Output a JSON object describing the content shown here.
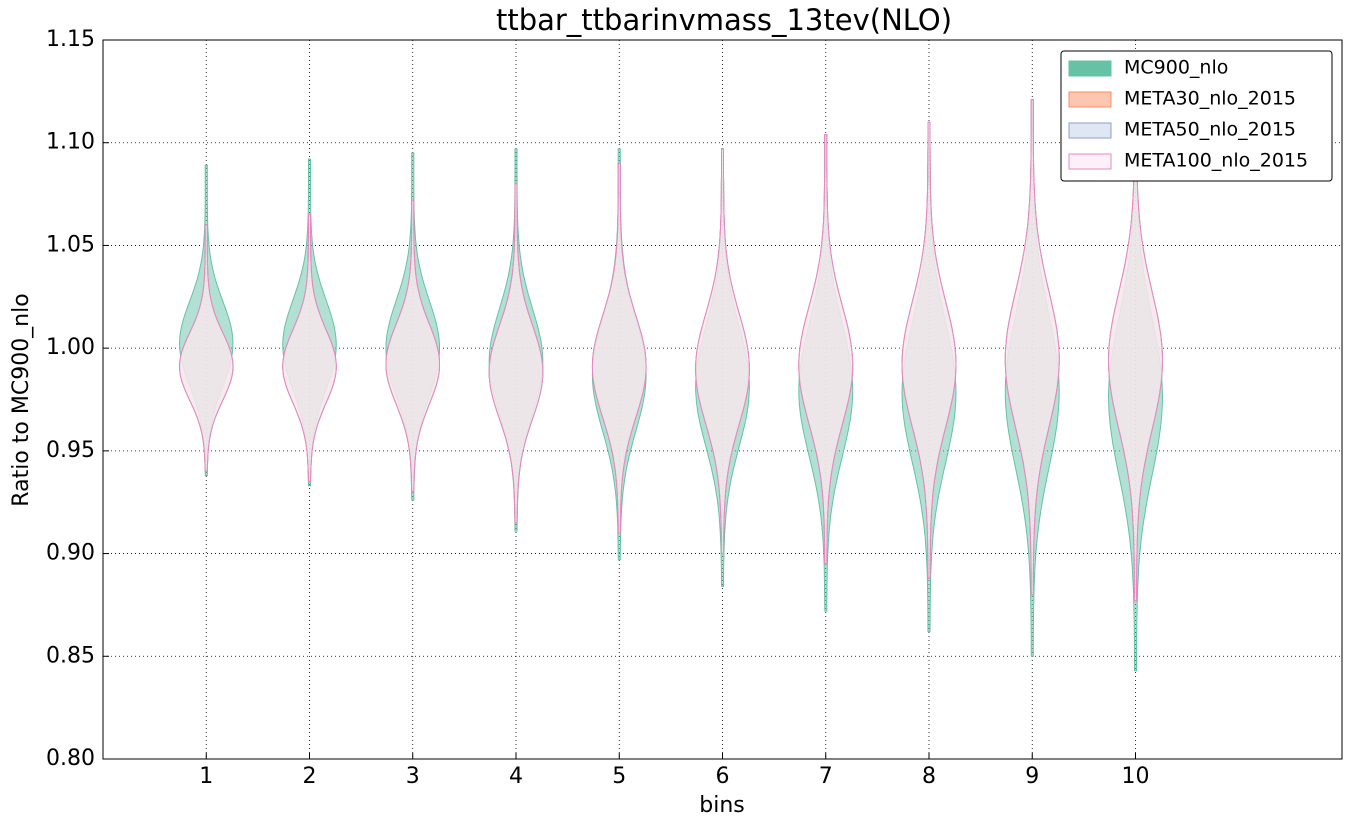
{
  "chart_data": {
    "type": "violin",
    "title": "ttbar_ttbarinvmass_13tev(NLO)",
    "x_label": "bins",
    "y_label": "Ratio to MC900_nlo",
    "x": [
      1,
      2,
      3,
      4,
      5,
      6,
      7,
      8,
      9,
      10
    ],
    "xlim": [
      0,
      12
    ],
    "xticks": [
      1,
      2,
      3,
      4,
      5,
      6,
      7,
      8,
      9,
      10
    ],
    "ylim": [
      0.8,
      1.15
    ],
    "yticks": [
      {
        "value": 0.8,
        "label": "0.80"
      },
      0.85,
      {
        "value": 0.9,
        "label": "0.90"
      },
      0.95,
      {
        "value": 1.0,
        "label": "1.00"
      },
      1.05,
      {
        "value": 1.1,
        "label": "1.10"
      },
      1.15
    ],
    "grid": true,
    "legend": "upper right",
    "series": [
      {
        "name": "MC900_nlo",
        "color": "#66c2a5",
        "edge": "#66c2a5",
        "min": [
          0.938,
          0.933,
          0.926,
          0.911,
          0.897,
          0.884,
          0.872,
          0.862,
          0.85,
          0.843
        ],
        "max": [
          1.089,
          1.092,
          1.095,
          1.097,
          1.097,
          1.097,
          1.104,
          1.11,
          1.121,
          1.12
        ]
      },
      {
        "name": "META30_nlo_2015",
        "color": "#fdc6b0",
        "edge": "#fc8d62",
        "min": [
          0.94,
          0.935,
          0.93,
          0.915,
          0.91,
          0.9,
          0.895,
          0.888,
          0.88,
          0.877
        ],
        "max": [
          1.06,
          1.065,
          1.072,
          1.08,
          1.09,
          1.097,
          1.104,
          1.11,
          1.121,
          1.12
        ]
      },
      {
        "name": "META50_nlo_2015",
        "color": "#dfe6f4",
        "edge": "#8da0cb",
        "min": [
          0.94,
          0.935,
          0.93,
          0.915,
          0.91,
          0.9,
          0.895,
          0.888,
          0.88,
          0.877
        ],
        "max": [
          1.06,
          1.065,
          1.072,
          1.08,
          1.09,
          1.097,
          1.104,
          1.11,
          1.121,
          1.12
        ]
      },
      {
        "name": "META100_nlo_2015",
        "color": "#fdf0f8",
        "edge": "#e78ac3",
        "min": [
          0.94,
          0.935,
          0.93,
          0.915,
          0.91,
          0.9,
          0.895,
          0.888,
          0.88,
          0.877
        ],
        "max": [
          1.06,
          1.065,
          1.072,
          1.08,
          1.09,
          1.097,
          1.104,
          1.11,
          1.121,
          1.12
        ]
      }
    ]
  }
}
